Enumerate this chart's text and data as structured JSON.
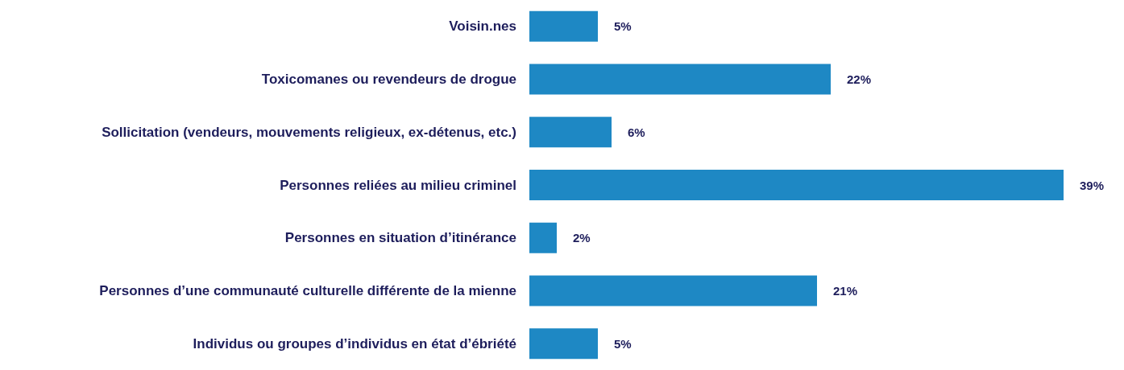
{
  "chart_data": {
    "type": "bar",
    "orientation": "horizontal",
    "categories": [
      "Voisin.nes",
      "Toxicomanes ou revendeurs de drogue",
      "Sollicitation (vendeurs, mouvements religieux, ex-détenus, etc.)",
      "Personnes reliées au milieu criminel",
      "Personnes en situation d’itinérance",
      "Personnes d’une communauté culturelle différente de la mienne",
      "Individus ou groupes d’individus en état d’ébriété"
    ],
    "values": [
      5,
      22,
      6,
      39,
      2,
      21,
      5
    ],
    "value_labels": [
      "5%",
      "22%",
      "6%",
      "39%",
      "2%",
      "21%",
      "5%"
    ],
    "color": "#1e88c4"
  }
}
